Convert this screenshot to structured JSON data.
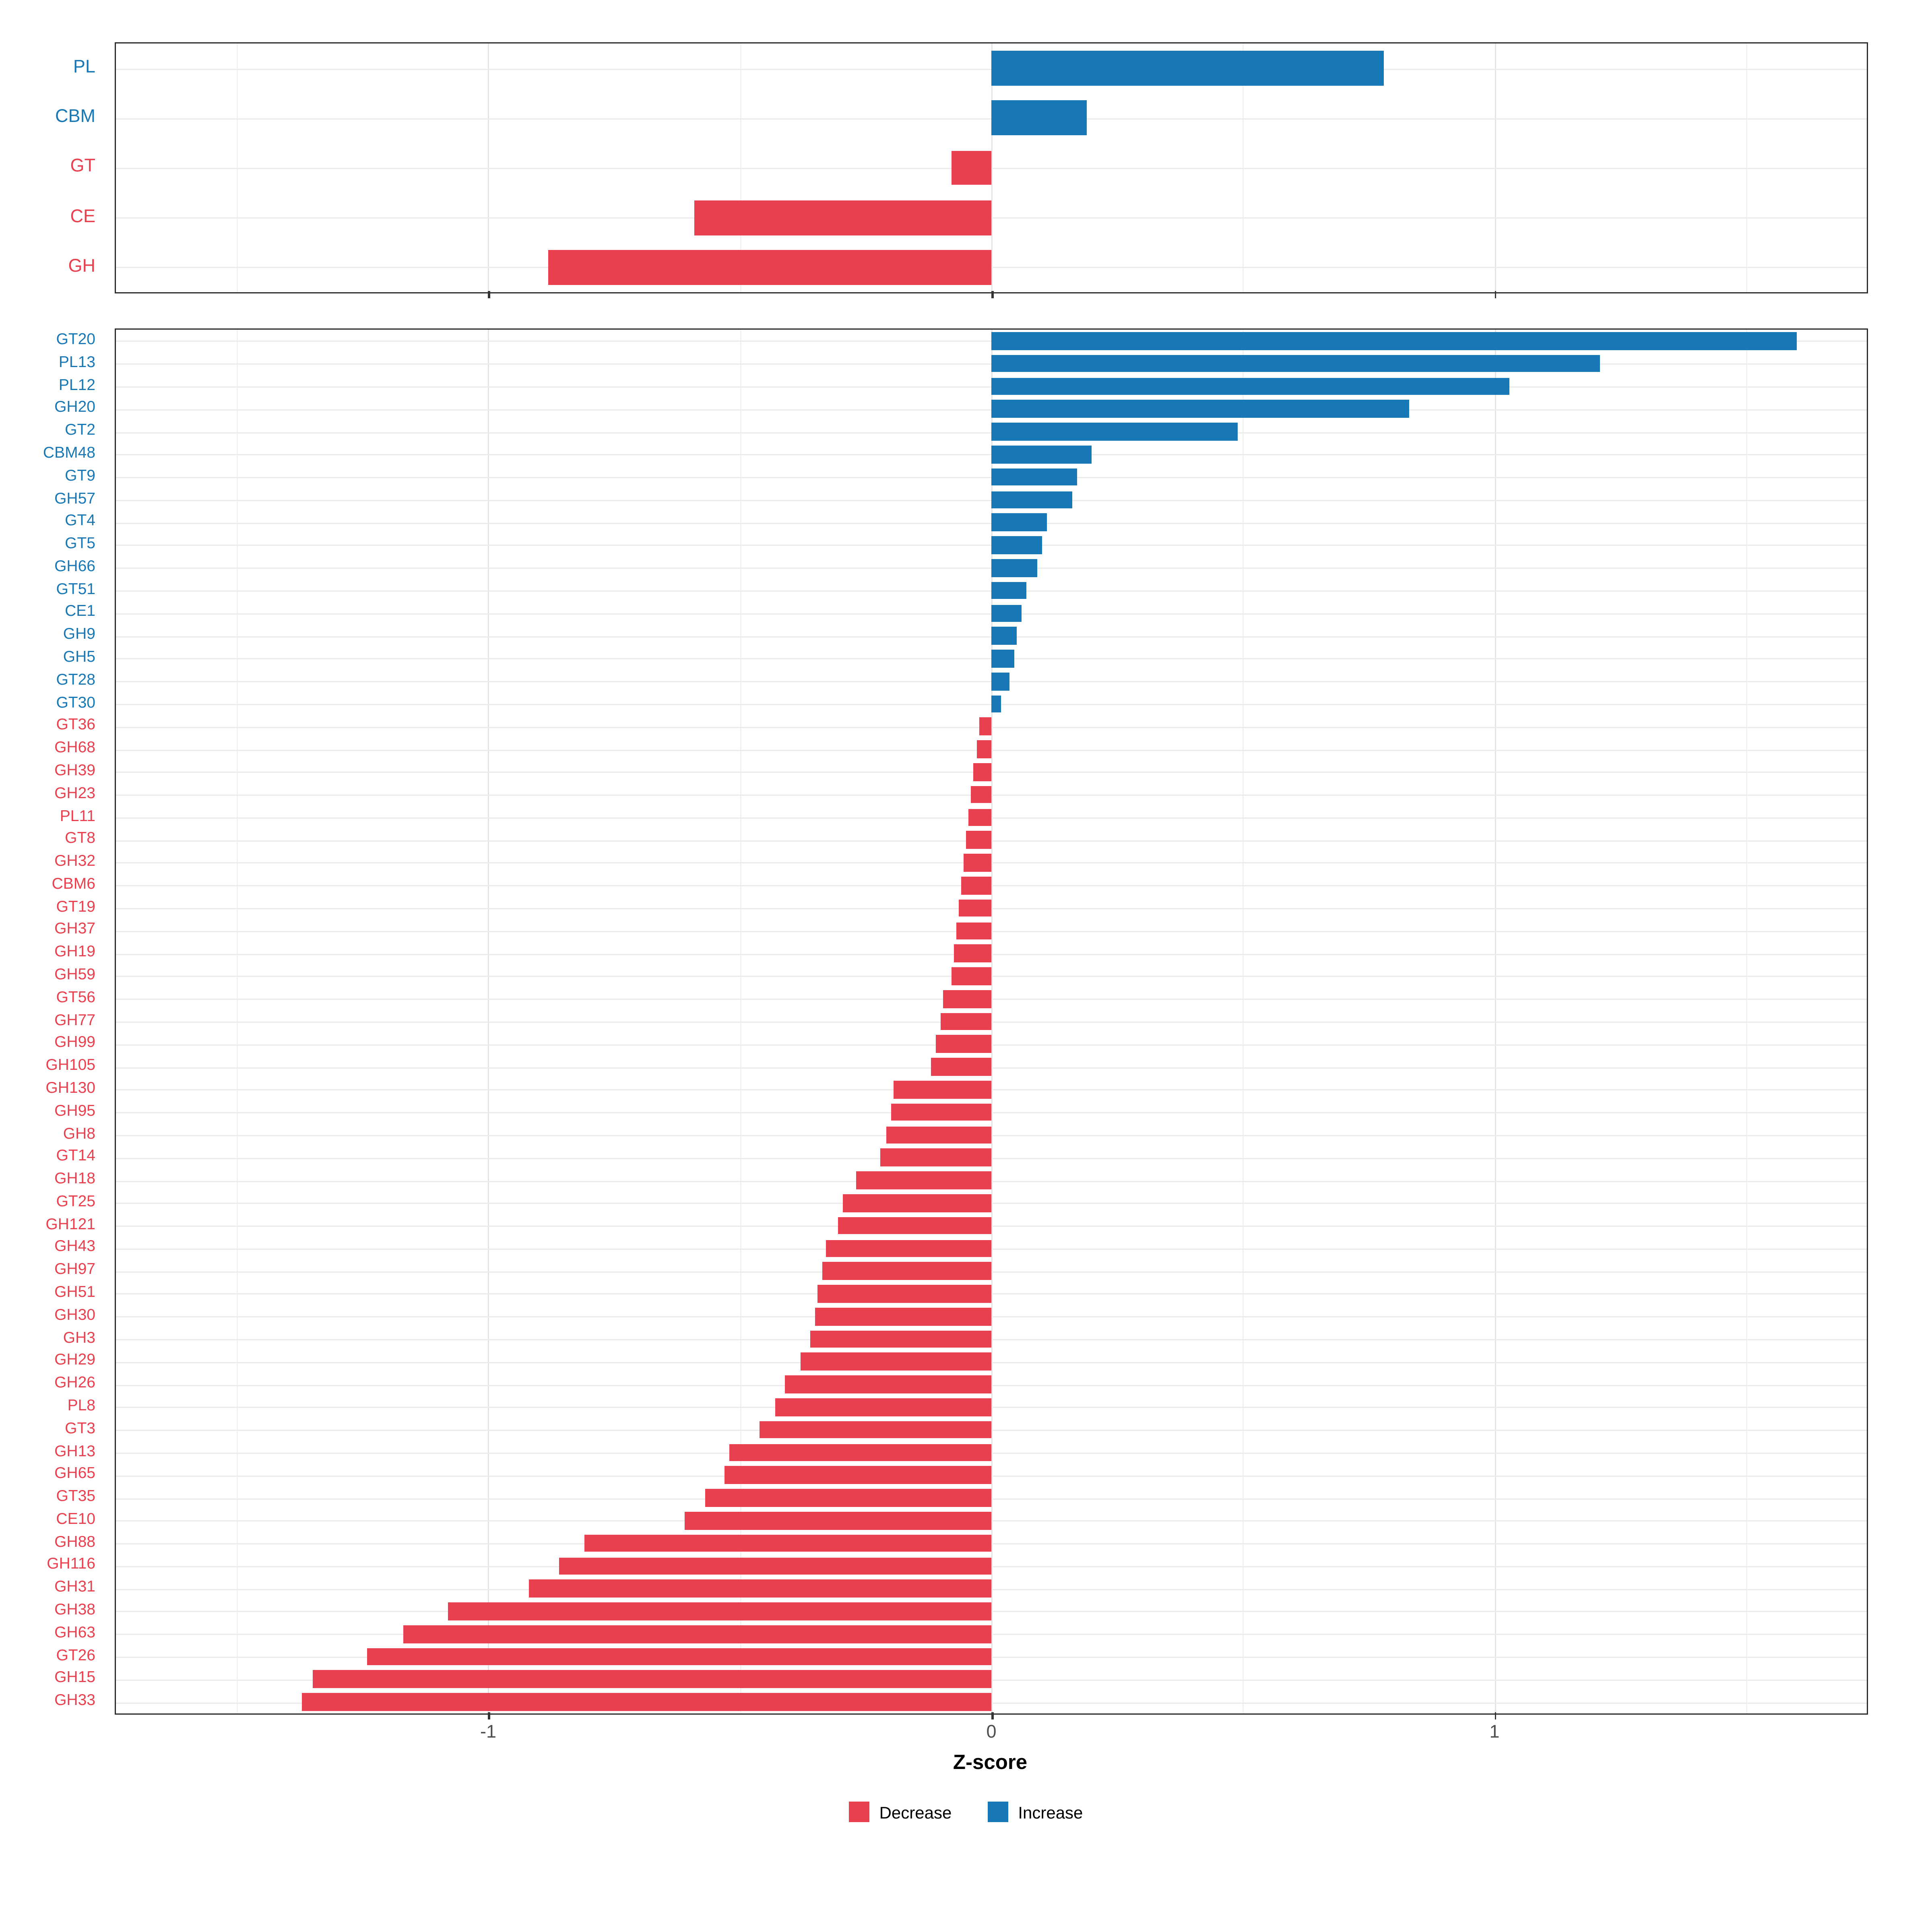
{
  "chart_data": {
    "type": "bar",
    "orientation": "horizontal",
    "xlabel": "Z-score",
    "xlim": [
      -1.74,
      1.74
    ],
    "x_ticks": [
      -1,
      0,
      1
    ],
    "x_tick_labels": [
      "-1",
      "0",
      "1"
    ],
    "x_minor_ticks": [
      -1.5,
      -0.5,
      0.5,
      1.5
    ],
    "grid": true,
    "legend_position": "bottom",
    "colors": {
      "decrease": "#E8404E",
      "increase": "#1878B5"
    },
    "legend": [
      {
        "label": "Decrease",
        "color": "#E8404E"
      },
      {
        "label": "Increase",
        "color": "#1878B5"
      }
    ],
    "panels": [
      {
        "name": "enzyme-class-summary",
        "categories": [
          "PL",
          "CBM",
          "GT",
          "CE",
          "GH"
        ],
        "values": [
          0.78,
          0.19,
          -0.08,
          -0.59,
          -0.88
        ]
      },
      {
        "name": "cazyme-families",
        "categories": [
          "GT20",
          "PL13",
          "PL12",
          "GH20",
          "GT2",
          "CBM48",
          "GT9",
          "GH57",
          "GT4",
          "GT5",
          "GH66",
          "GT51",
          "CE1",
          "GH9",
          "GH5",
          "GT28",
          "GT30",
          "GT36",
          "GH68",
          "GH39",
          "GH23",
          "PL11",
          "GT8",
          "GH32",
          "CBM6",
          "GT19",
          "GH37",
          "GH19",
          "GH59",
          "GT56",
          "GH77",
          "GH99",
          "GH105",
          "GH130",
          "GH95",
          "GH8",
          "GT14",
          "GH18",
          "GT25",
          "GH121",
          "GH43",
          "GH97",
          "GH51",
          "GH30",
          "GH3",
          "GH29",
          "GH26",
          "PL8",
          "GT3",
          "GH13",
          "GH65",
          "GT35",
          "CE10",
          "GH88",
          "GH116",
          "GH31",
          "GH38",
          "GH63",
          "GT26",
          "GH15",
          "GH33"
        ],
        "values": [
          1.6,
          1.21,
          1.03,
          0.83,
          0.49,
          0.2,
          0.17,
          0.16,
          0.11,
          0.1,
          0.09,
          0.07,
          0.06,
          0.05,
          0.045,
          0.035,
          0.02,
          -0.025,
          -0.03,
          -0.035,
          -0.04,
          -0.045,
          -0.05,
          -0.055,
          -0.06,
          -0.065,
          -0.07,
          -0.075,
          -0.08,
          -0.095,
          -0.1,
          -0.11,
          -0.12,
          -0.195,
          -0.2,
          -0.21,
          -0.22,
          -0.27,
          -0.295,
          -0.305,
          -0.33,
          -0.335,
          -0.345,
          -0.35,
          -0.36,
          -0.38,
          -0.41,
          -0.43,
          -0.46,
          -0.52,
          -0.53,
          -0.57,
          -0.61,
          -0.81,
          -0.86,
          -0.92,
          -1.08,
          -1.17,
          -1.24,
          -1.35,
          -1.37
        ]
      }
    ]
  }
}
